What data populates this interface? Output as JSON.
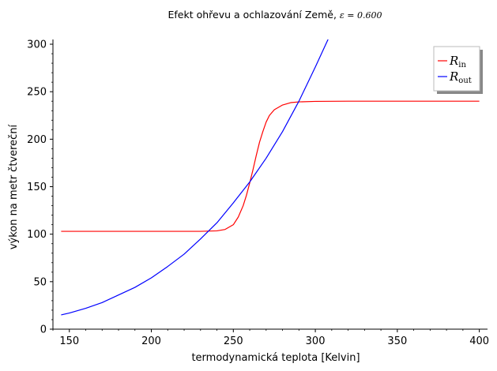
{
  "chart_data": {
    "type": "line",
    "title": "Efekt ohřevu a ochlazování Země, ε = 0.600",
    "title_main": "Efekt ohřevu a ochlazování Země, ",
    "title_math": "ε = 0.600",
    "xlabel": "termodynamická teplota [Kelvin]",
    "ylabel": "výkon na metr čtvereční",
    "xlim": [
      140,
      405
    ],
    "ylim": [
      0,
      305
    ],
    "xticks": [
      150,
      200,
      250,
      300,
      350,
      400
    ],
    "yticks": [
      0,
      50,
      100,
      150,
      200,
      250,
      300
    ],
    "grid": false,
    "legend_position": "top-right",
    "series": [
      {
        "name": "R_in",
        "label_main": "R",
        "label_sub": "in",
        "color": "#ff0000",
        "x": [
          145,
          160,
          180,
          200,
          220,
          230,
          240,
          245,
          250,
          253,
          256,
          258,
          260,
          262,
          264,
          266,
          268,
          270,
          272,
          275,
          280,
          285,
          290,
          300,
          320,
          350,
          400
        ],
        "y": [
          103,
          103,
          103,
          103,
          103,
          103,
          103.5,
          105,
          110,
          118,
          130,
          141,
          154,
          168,
          183,
          197,
          208,
          218,
          225,
          231,
          236,
          238.5,
          239.3,
          239.8,
          240,
          240,
          240
        ]
      },
      {
        "name": "R_out",
        "label_main": "R",
        "label_sub": "out",
        "color": "#0000ff",
        "x": [
          145,
          150,
          160,
          170,
          180,
          190,
          200,
          210,
          220,
          230,
          240,
          250,
          260,
          270,
          280,
          290,
          300,
          308
        ],
        "y": [
          15,
          17,
          22,
          28,
          36,
          44,
          54,
          66,
          79,
          95,
          112,
          133,
          155,
          180,
          208,
          240,
          276,
          306
        ]
      }
    ]
  }
}
